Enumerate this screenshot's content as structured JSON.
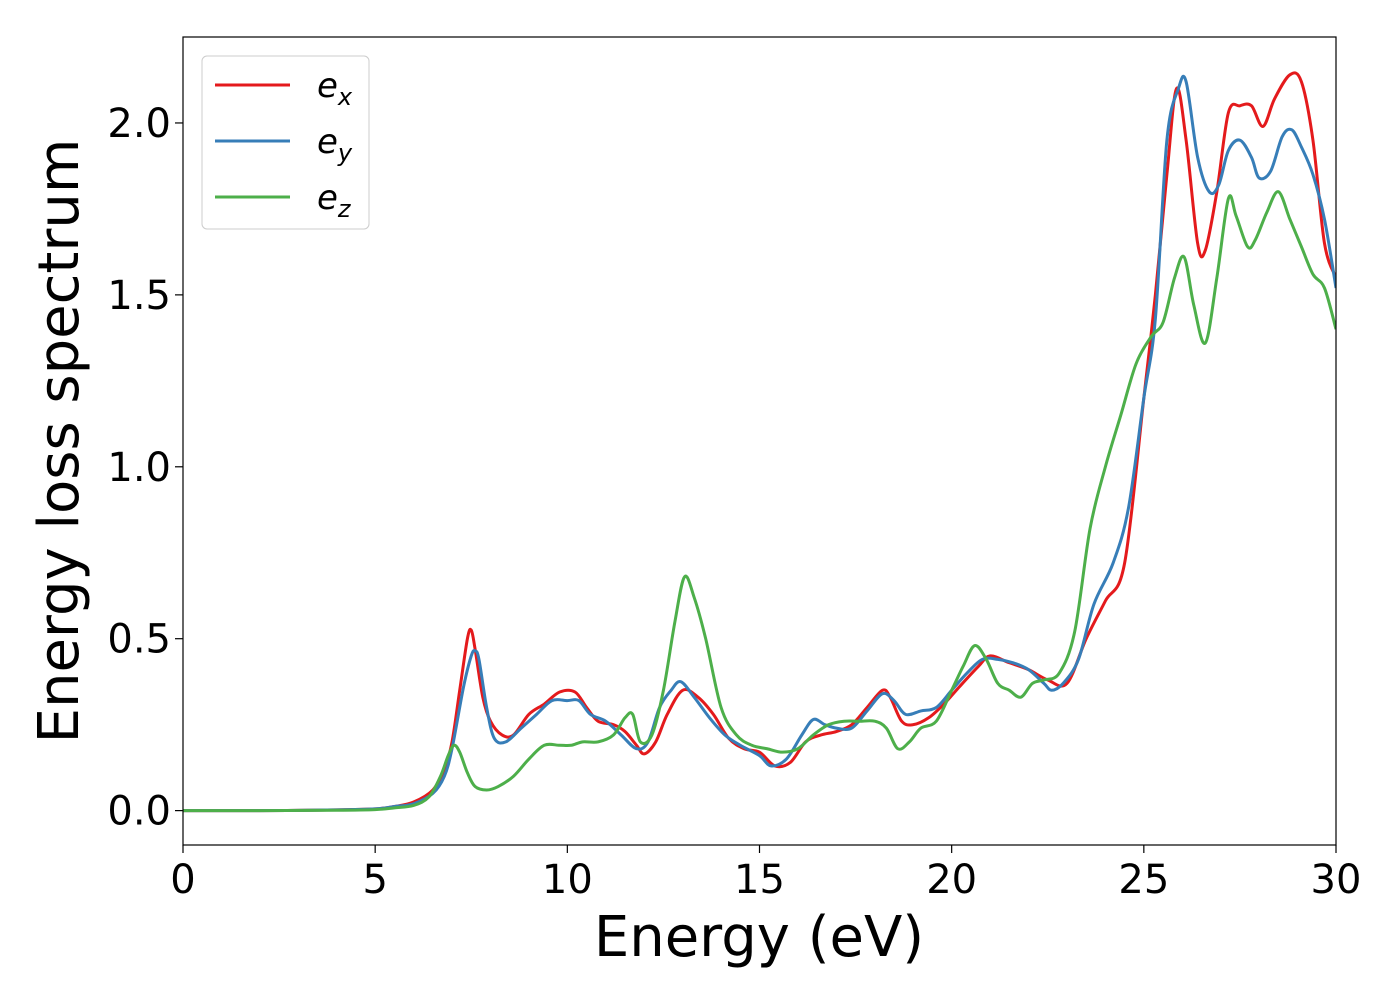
{
  "chart_data": {
    "type": "line",
    "title": "",
    "xlabel": "Energy (eV)",
    "ylabel": "Energy loss spectrum",
    "xlim": [
      0,
      30
    ],
    "ylim": [
      -0.1,
      2.25
    ],
    "xticks": [
      0,
      5,
      10,
      15,
      20,
      25,
      30
    ],
    "xtick_labels": [
      "0",
      "5",
      "10",
      "15",
      "20",
      "25",
      "30"
    ],
    "yticks": [
      0.0,
      0.5,
      1.0,
      1.5,
      2.0
    ],
    "ytick_labels": [
      "0.0",
      "0.5",
      "1.0",
      "1.5",
      "2.0"
    ],
    "grid": false,
    "legend_position": "top-left",
    "series": [
      {
        "name": "e_x",
        "legend_base": "e",
        "legend_sub": "x",
        "color": "#e41a1c",
        "x": [
          0,
          2,
          4,
          5,
          5.5,
          6,
          6.5,
          6.8,
          7.0,
          7.2,
          7.4,
          7.5,
          7.6,
          7.8,
          8.0,
          8.3,
          8.6,
          9.0,
          9.4,
          9.8,
          10.2,
          10.5,
          10.8,
          11.2,
          11.5,
          11.8,
          12.0,
          12.3,
          12.6,
          13.0,
          13.4,
          13.8,
          14.2,
          14.6,
          15.0,
          15.4,
          15.8,
          16.2,
          16.6,
          17.0,
          17.4,
          17.8,
          18.2,
          18.4,
          18.7,
          19.0,
          19.4,
          19.8,
          20.2,
          20.7,
          21.0,
          21.5,
          22.0,
          22.5,
          23.0,
          23.5,
          24.0,
          24.5,
          25.0,
          25.3,
          25.6,
          25.85,
          26.1,
          26.4,
          26.6,
          26.9,
          27.2,
          27.5,
          27.8,
          28.1,
          28.4,
          28.8,
          29.1,
          29.4,
          29.7,
          30.0
        ],
        "y": [
          0.0,
          0.0,
          0.002,
          0.005,
          0.012,
          0.025,
          0.06,
          0.12,
          0.2,
          0.35,
          0.5,
          0.525,
          0.47,
          0.33,
          0.26,
          0.22,
          0.22,
          0.28,
          0.31,
          0.345,
          0.345,
          0.3,
          0.26,
          0.25,
          0.23,
          0.19,
          0.165,
          0.2,
          0.28,
          0.35,
          0.33,
          0.28,
          0.21,
          0.18,
          0.17,
          0.13,
          0.14,
          0.2,
          0.22,
          0.23,
          0.25,
          0.3,
          0.35,
          0.33,
          0.26,
          0.25,
          0.27,
          0.31,
          0.36,
          0.42,
          0.45,
          0.43,
          0.41,
          0.38,
          0.37,
          0.5,
          0.61,
          0.72,
          1.2,
          1.5,
          1.85,
          2.1,
          1.95,
          1.65,
          1.63,
          1.8,
          2.03,
          2.05,
          2.05,
          1.99,
          2.07,
          2.14,
          2.12,
          1.95,
          1.65,
          1.55
        ]
      },
      {
        "name": "e_y",
        "legend_base": "e",
        "legend_sub": "y",
        "color": "#377eb8",
        "x": [
          0,
          2,
          4,
          5,
          5.5,
          6,
          6.5,
          6.8,
          7.0,
          7.3,
          7.5,
          7.6,
          7.7,
          7.9,
          8.1,
          8.4,
          8.8,
          9.2,
          9.6,
          10.0,
          10.3,
          10.6,
          11.0,
          11.4,
          11.8,
          12.1,
          12.4,
          12.7,
          12.95,
          13.3,
          13.7,
          14.1,
          14.5,
          15.0,
          15.3,
          15.7,
          16.1,
          16.4,
          16.7,
          17.0,
          17.4,
          17.8,
          18.2,
          18.5,
          18.8,
          19.2,
          19.6,
          20.0,
          20.4,
          20.8,
          21.2,
          21.6,
          22.0,
          22.4,
          22.6,
          22.9,
          23.3,
          23.7,
          24.2,
          24.6,
          25.0,
          25.3,
          25.6,
          25.9,
          26.1,
          26.4,
          26.7,
          26.95,
          27.2,
          27.5,
          27.8,
          28.0,
          28.3,
          28.6,
          28.85,
          29.1,
          29.4,
          29.7,
          30.0
        ],
        "y": [
          0.0,
          0.0,
          0.002,
          0.005,
          0.012,
          0.02,
          0.05,
          0.1,
          0.18,
          0.36,
          0.45,
          0.465,
          0.44,
          0.3,
          0.21,
          0.2,
          0.24,
          0.28,
          0.32,
          0.32,
          0.32,
          0.28,
          0.26,
          0.22,
          0.18,
          0.2,
          0.3,
          0.35,
          0.375,
          0.33,
          0.27,
          0.22,
          0.19,
          0.16,
          0.13,
          0.15,
          0.22,
          0.265,
          0.25,
          0.24,
          0.24,
          0.29,
          0.34,
          0.32,
          0.28,
          0.29,
          0.3,
          0.35,
          0.4,
          0.44,
          0.44,
          0.43,
          0.41,
          0.37,
          0.35,
          0.37,
          0.44,
          0.6,
          0.72,
          0.88,
          1.2,
          1.43,
          1.95,
          2.1,
          2.12,
          1.9,
          1.8,
          1.82,
          1.92,
          1.95,
          1.9,
          1.84,
          1.86,
          1.96,
          1.98,
          1.93,
          1.85,
          1.72,
          1.52
        ]
      },
      {
        "name": "e_z",
        "legend_base": "e",
        "legend_sub": "z",
        "color": "#4daf4a",
        "x": [
          0,
          2,
          4,
          5,
          5.5,
          6,
          6.4,
          6.7,
          6.9,
          7.05,
          7.2,
          7.4,
          7.6,
          7.9,
          8.2,
          8.6,
          9.0,
          9.4,
          9.8,
          10.1,
          10.4,
          10.8,
          11.2,
          11.5,
          11.7,
          11.9,
          12.2,
          12.5,
          12.8,
          13.05,
          13.3,
          13.6,
          14.0,
          14.4,
          14.8,
          15.2,
          15.6,
          16.0,
          16.4,
          16.8,
          17.2,
          17.6,
          18.0,
          18.3,
          18.6,
          18.9,
          19.2,
          19.6,
          20.0,
          20.3,
          20.6,
          20.9,
          21.2,
          21.5,
          21.8,
          22.1,
          22.4,
          22.8,
          23.2,
          23.6,
          24.0,
          24.4,
          24.8,
          25.2,
          25.5,
          25.8,
          26.05,
          26.3,
          26.6,
          26.9,
          27.2,
          27.4,
          27.7,
          27.9,
          28.2,
          28.5,
          28.8,
          29.1,
          29.4,
          29.7,
          30.0
        ],
        "y": [
          0.0,
          0.0,
          0.001,
          0.003,
          0.008,
          0.015,
          0.04,
          0.1,
          0.16,
          0.19,
          0.17,
          0.11,
          0.07,
          0.06,
          0.07,
          0.1,
          0.15,
          0.19,
          0.19,
          0.19,
          0.2,
          0.2,
          0.22,
          0.27,
          0.28,
          0.2,
          0.22,
          0.35,
          0.55,
          0.68,
          0.62,
          0.5,
          0.3,
          0.22,
          0.19,
          0.18,
          0.17,
          0.18,
          0.22,
          0.25,
          0.26,
          0.26,
          0.26,
          0.24,
          0.18,
          0.2,
          0.24,
          0.26,
          0.35,
          0.42,
          0.48,
          0.44,
          0.37,
          0.35,
          0.33,
          0.37,
          0.38,
          0.4,
          0.52,
          0.82,
          1.0,
          1.15,
          1.3,
          1.38,
          1.42,
          1.55,
          1.61,
          1.47,
          1.36,
          1.55,
          1.78,
          1.73,
          1.64,
          1.66,
          1.74,
          1.8,
          1.72,
          1.64,
          1.56,
          1.52,
          1.4
        ]
      }
    ]
  }
}
